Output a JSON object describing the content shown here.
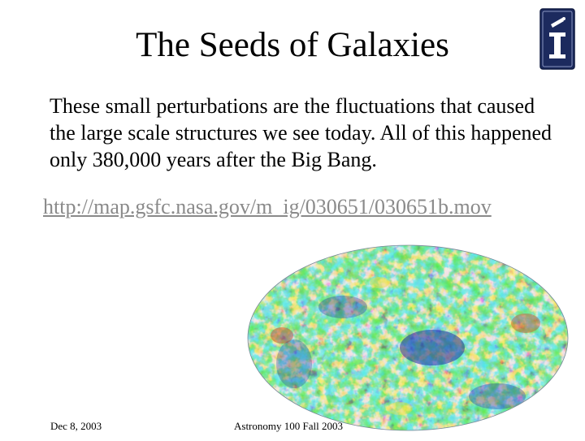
{
  "slide": {
    "title": "The Seeds of Galaxies",
    "body": "These small perturbations are the fluctuations that caused the large scale structures we see today.  All of this happened only 380,000 years after the Big Bang.",
    "link": "http://map.gsfc.nasa.gov/m_ig/030651/030651b.mov"
  },
  "footer": {
    "date": "Dec 8, 2003",
    "course": "Astronomy 100 Fall 2003"
  },
  "colors": {
    "logo_navy": "#1c2a5e",
    "link_gray": "#8a8a8a",
    "cmb_blue": "#1b2ea8",
    "cmb_cyan": "#2bb3c8",
    "cmb_green": "#3fc06a",
    "cmb_yellow": "#e8e23a",
    "cmb_red": "#d83a1e"
  },
  "icons": {
    "logo": "university-logo-icon",
    "image": "cmb-sky-map"
  }
}
